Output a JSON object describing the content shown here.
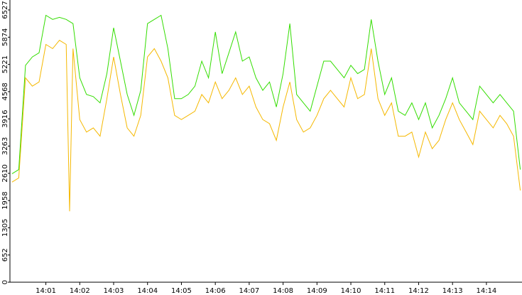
{
  "chart_data": {
    "type": "line",
    "x": [
      0,
      0.2,
      0.4,
      0.6,
      0.8,
      1,
      1.2,
      1.4,
      1.6,
      1.7,
      1.8,
      2,
      2.2,
      2.4,
      2.6,
      2.8,
      3,
      3.2,
      3.4,
      3.6,
      3.8,
      4,
      4.2,
      4.4,
      4.6,
      4.8,
      5,
      5.2,
      5.4,
      5.6,
      5.8,
      6,
      6.2,
      6.4,
      6.6,
      6.8,
      7,
      7.2,
      7.4,
      7.6,
      7.8,
      8,
      8.2,
      8.4,
      8.6,
      8.8,
      9,
      9.2,
      9.4,
      9.6,
      9.8,
      10,
      10.2,
      10.4,
      10.6,
      10.8,
      11,
      11.2,
      11.4,
      11.6,
      11.8,
      12,
      12.2,
      12.4,
      12.6,
      12.8,
      13,
      13.2,
      13.4,
      13.6,
      13.8,
      14,
      14.2,
      14.4,
      14.6,
      14.8,
      15
    ],
    "series": [
      {
        "color": "#f5b800",
        "values": [
          2400,
          2500,
          4900,
          4700,
          4800,
          5700,
          5600,
          5800,
          5700,
          1700,
          5600,
          3900,
          3600,
          3700,
          3500,
          4400,
          5400,
          4500,
          3700,
          3500,
          4000,
          5400,
          5600,
          5300,
          4900,
          4000,
          3900,
          4000,
          4100,
          4500,
          4300,
          4800,
          4400,
          4600,
          4900,
          4500,
          4700,
          4200,
          3900,
          3800,
          3400,
          4200,
          4800,
          3900,
          3600,
          3700,
          4000,
          4400,
          4600,
          4400,
          4200,
          4900,
          4400,
          4500,
          5600,
          4400,
          4000,
          4300,
          3500,
          3500,
          3600,
          3000,
          3600,
          3200,
          3400,
          3900,
          4300,
          3900,
          3600,
          3300,
          4100,
          3900,
          3700,
          4000,
          3800,
          3500,
          2200
        ]
      },
      {
        "color": "#33dd00",
        "values": [
          2600,
          2700,
          5200,
          5400,
          5500,
          6400,
          6300,
          6350,
          6300,
          6250,
          6200,
          4900,
          4500,
          4450,
          4300,
          5000,
          6100,
          5300,
          4500,
          4000,
          4600,
          6200,
          6300,
          6400,
          5600,
          4400,
          4400,
          4500,
          4700,
          5300,
          4900,
          6000,
          5000,
          5500,
          6000,
          5300,
          5400,
          4900,
          4600,
          4800,
          4200,
          5000,
          6200,
          4500,
          4300,
          4100,
          4700,
          5300,
          5300,
          5100,
          4900,
          5200,
          5000,
          5100,
          6300,
          5300,
          4500,
          4900,
          4100,
          4000,
          4300,
          3900,
          4300,
          3700,
          4000,
          4400,
          4900,
          4300,
          4100,
          3900,
          4700,
          4500,
          4300,
          4500,
          4300,
          4100,
          2700
        ]
      }
    ],
    "xlim": [
      -0.06,
      15.05
    ],
    "xticks": [
      {
        "value": 1,
        "label": "14:01"
      },
      {
        "value": 2,
        "label": "14:02"
      },
      {
        "value": 3,
        "label": "14:03"
      },
      {
        "value": 4,
        "label": "14:04"
      },
      {
        "value": 5,
        "label": "14:05"
      },
      {
        "value": 6,
        "label": "14:06"
      },
      {
        "value": 7,
        "label": "14:07"
      },
      {
        "value": 8,
        "label": "14:08"
      },
      {
        "value": 9,
        "label": "14:09"
      },
      {
        "value": 10,
        "label": "14:10"
      },
      {
        "value": 11,
        "label": "14:11"
      },
      {
        "value": 12,
        "label": "14:12"
      },
      {
        "value": 13,
        "label": "14:13"
      },
      {
        "value": 14,
        "label": "14:14"
      }
    ],
    "ylim": [
      0,
      6527
    ],
    "yticks": [
      0,
      652,
      1305,
      1958,
      2610,
      3263,
      3916,
      4568,
      5221,
      5874,
      6527
    ]
  }
}
